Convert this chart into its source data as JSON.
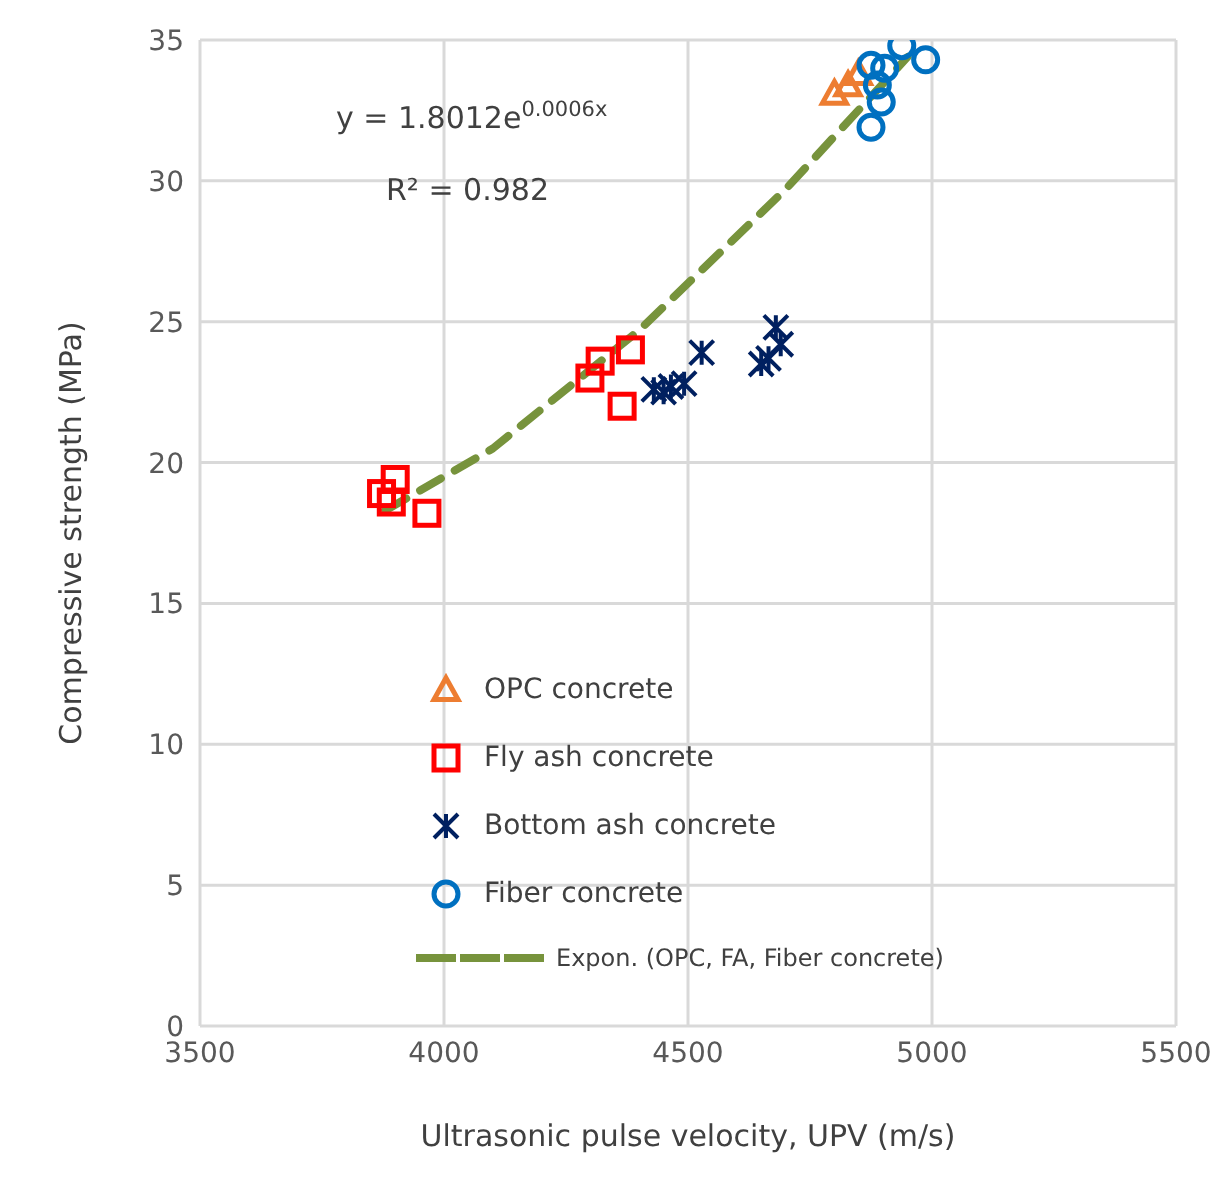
{
  "chart_data": {
    "type": "scatter",
    "xlabel": "Ultrasonic pulse velocity, UPV (m/s)",
    "ylabel": "Compressive strength (MPa)",
    "xlim": [
      3500,
      5500
    ],
    "xticks": [
      3500,
      4000,
      4500,
      5000,
      5500
    ],
    "ylim": [
      0,
      35
    ],
    "yticks": [
      0,
      5,
      10,
      15,
      20,
      25,
      30,
      35
    ],
    "grid": true,
    "legend": "bottom",
    "annotations": [
      "y = 1.8012e$^{0.0006x}$",
      "R² = 0.982"
    ],
    "series": [
      {
        "name": "OPC concrete",
        "color": "#ed7d31",
        "marker": "triangle",
        "x": [
          4800,
          4828,
          4849
        ],
        "values": [
          33.1,
          33.4,
          33.8
        ]
      },
      {
        "name": "Fly ash concrete",
        "color": "#ff0000",
        "marker": "square",
        "x": [
          3872,
          3900,
          3892,
          3965,
          4299,
          4320,
          4382,
          4365
        ],
        "values": [
          18.9,
          19.4,
          18.6,
          18.2,
          23.0,
          23.6,
          24.0,
          22.0
        ]
      },
      {
        "name": "Bottom ash concrete",
        "color": "#002060",
        "marker": "cross",
        "x": [
          4430,
          4450,
          4465,
          4492,
          4528,
          4650,
          4665,
          4680,
          4690
        ],
        "values": [
          22.6,
          22.5,
          22.7,
          22.8,
          23.9,
          23.5,
          23.7,
          24.8,
          24.2
        ]
      },
      {
        "name": "Fiber concrete",
        "color": "#0070c0",
        "marker": "circle",
        "x": [
          4938,
          4987,
          4875,
          4903,
          4888,
          4896,
          4875
        ],
        "values": [
          34.8,
          34.3,
          34.1,
          34.0,
          33.4,
          32.8,
          31.9
        ]
      },
      {
        "name": "Expon. (OPC, FA, Fiber concrete)",
        "type": "line",
        "color": "#77933c",
        "marker": "none",
        "line_style": "dashed",
        "x": [
          3880,
          4100,
          4400,
          4700,
          4950
        ],
        "values": [
          18.3,
          20.5,
          24.7,
          29.7,
          34.4
        ]
      }
    ]
  }
}
